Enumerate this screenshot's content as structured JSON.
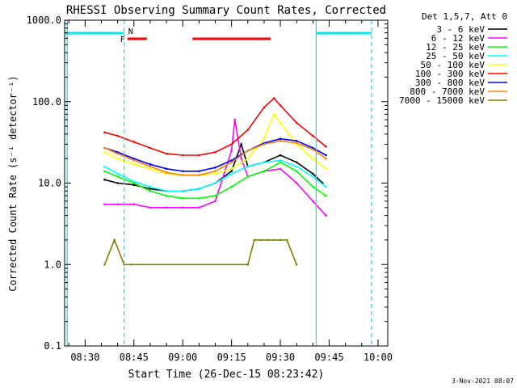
{
  "chart_data": {
    "type": "line",
    "title": "RHESSI Observing Summary Count Rates, Corrected",
    "xlabel": "Start Time (26-Dec-15 08:23:42)",
    "ylabel": "Corrected Count Rate (s⁻¹ detector⁻¹)",
    "y_scale": "log",
    "ylim": [
      0.1,
      1000
    ],
    "xlim": [
      "08:23:42",
      "10:03:00"
    ],
    "x_ticks": [
      "08:30",
      "08:45",
      "09:00",
      "09:15",
      "09:30",
      "09:45",
      "10:00"
    ],
    "y_ticks": [
      "0.1",
      "1.0",
      "10.0",
      "100.0",
      "1000.0"
    ],
    "legend_title": "Det 1,5,7, Att 0",
    "legend_position": "right",
    "footer": "3-Nov-2021 08:07",
    "flags": {
      "night_label": "N",
      "flare_label": "F",
      "night_intervals": [
        [
          "08:23:42",
          "08:42:00"
        ],
        [
          "09:41:00",
          "09:58:00"
        ]
      ],
      "flare_intervals": [
        [
          "08:43:00",
          "08:49:00"
        ],
        [
          "09:03:00",
          "09:27:00"
        ]
      ]
    },
    "boundaries": {
      "solid": [
        "08:24:30",
        "09:41:00"
      ],
      "dashed": [
        "08:42:00",
        "09:58:00"
      ]
    },
    "series": [
      {
        "name": "3 - 6 keV",
        "color": "#000000",
        "x": [
          "08:36",
          "08:40",
          "08:45",
          "08:50",
          "08:55",
          "09:00",
          "09:05",
          "09:10",
          "09:15",
          "09:18",
          "09:20",
          "09:25",
          "09:30",
          "09:35",
          "09:40",
          "09:43"
        ],
        "y": [
          11,
          10,
          9.5,
          8.5,
          8,
          8,
          8.5,
          10,
          14,
          30,
          16,
          18,
          22,
          18,
          13,
          10
        ]
      },
      {
        "name": "6 - 12 keV",
        "color": "#ff00ff",
        "x": [
          "08:36",
          "08:40",
          "08:45",
          "08:50",
          "08:55",
          "09:00",
          "09:05",
          "09:10",
          "09:15",
          "09:16",
          "09:18",
          "09:20",
          "09:25",
          "09:30",
          "09:35",
          "09:40",
          "09:44"
        ],
        "y": [
          5.5,
          5.5,
          5.5,
          5,
          5,
          5,
          5,
          6,
          25,
          60,
          20,
          12,
          14,
          15,
          10,
          6,
          4
        ]
      },
      {
        "name": "12 - 25 keV",
        "color": "#00ff00",
        "x": [
          "08:36",
          "08:40",
          "08:45",
          "08:50",
          "08:55",
          "09:00",
          "09:05",
          "09:10",
          "09:15",
          "09:20",
          "09:25",
          "09:30",
          "09:35",
          "09:40",
          "09:44"
        ],
        "y": [
          14,
          12,
          10,
          8,
          7,
          6.5,
          6.5,
          7,
          9,
          12,
          14,
          18,
          14,
          9,
          7
        ]
      },
      {
        "name": "25 - 50 keV",
        "color": "#00ffff",
        "x": [
          "08:36",
          "08:40",
          "08:45",
          "08:50",
          "08:55",
          "09:00",
          "09:05",
          "09:10",
          "09:15",
          "09:20",
          "09:25",
          "09:30",
          "09:35",
          "09:40",
          "09:44"
        ],
        "y": [
          16,
          13,
          10.5,
          9,
          8,
          8,
          8.5,
          10,
          13,
          16,
          18,
          19,
          16,
          12,
          9
        ]
      },
      {
        "name": "50 - 100 keV",
        "color": "#ffff00",
        "x": [
          "08:36",
          "08:40",
          "08:45",
          "08:50",
          "08:55",
          "09:00",
          "09:05",
          "09:10",
          "09:15",
          "09:20",
          "09:25",
          "09:28",
          "09:30",
          "09:35",
          "09:40",
          "09:44"
        ],
        "y": [
          24,
          20,
          17,
          15,
          13,
          12.5,
          12.5,
          13,
          15,
          20,
          35,
          70,
          55,
          30,
          20,
          15
        ]
      },
      {
        "name": "100 - 300 keV",
        "color": "#ff0000",
        "x": [
          "08:36",
          "08:40",
          "08:45",
          "08:50",
          "08:55",
          "09:00",
          "09:05",
          "09:10",
          "09:15",
          "09:20",
          "09:25",
          "09:28",
          "09:30",
          "09:35",
          "09:40",
          "09:44"
        ],
        "y": [
          42,
          38,
          32,
          27,
          23,
          22,
          22,
          24,
          30,
          45,
          85,
          110,
          90,
          55,
          38,
          28
        ]
      },
      {
        "name": "300 - 800 keV",
        "color": "#0000ff",
        "x": [
          "08:36",
          "08:40",
          "08:45",
          "08:50",
          "08:55",
          "09:00",
          "09:05",
          "09:10",
          "09:15",
          "09:20",
          "09:25",
          "09:30",
          "09:35",
          "09:40",
          "09:44"
        ],
        "y": [
          27,
          24,
          20,
          17,
          15,
          14,
          14,
          15.5,
          19,
          25,
          31,
          35,
          33,
          27,
          22
        ]
      },
      {
        "name": "800 - 7000 keV",
        "color": "#ff8000",
        "x": [
          "08:36",
          "08:40",
          "08:45",
          "08:50",
          "08:55",
          "09:00",
          "09:05",
          "09:10",
          "09:15",
          "09:20",
          "09:25",
          "09:30",
          "09:35",
          "09:40",
          "09:44"
        ],
        "y": [
          27,
          23,
          19,
          16,
          13.5,
          12.5,
          12.5,
          14,
          18,
          25,
          30,
          33,
          31,
          26,
          20
        ]
      },
      {
        "name": "7000 - 15000 keV",
        "color": "#808000",
        "x": [
          "08:36",
          "08:39",
          "08:42",
          "08:44",
          "09:20",
          "09:22",
          "09:24",
          "09:26",
          "09:28",
          "09:30",
          "09:32",
          "09:35"
        ],
        "y": [
          1,
          2,
          1,
          1,
          1,
          2,
          2,
          2,
          2,
          2,
          2,
          1
        ]
      }
    ]
  }
}
